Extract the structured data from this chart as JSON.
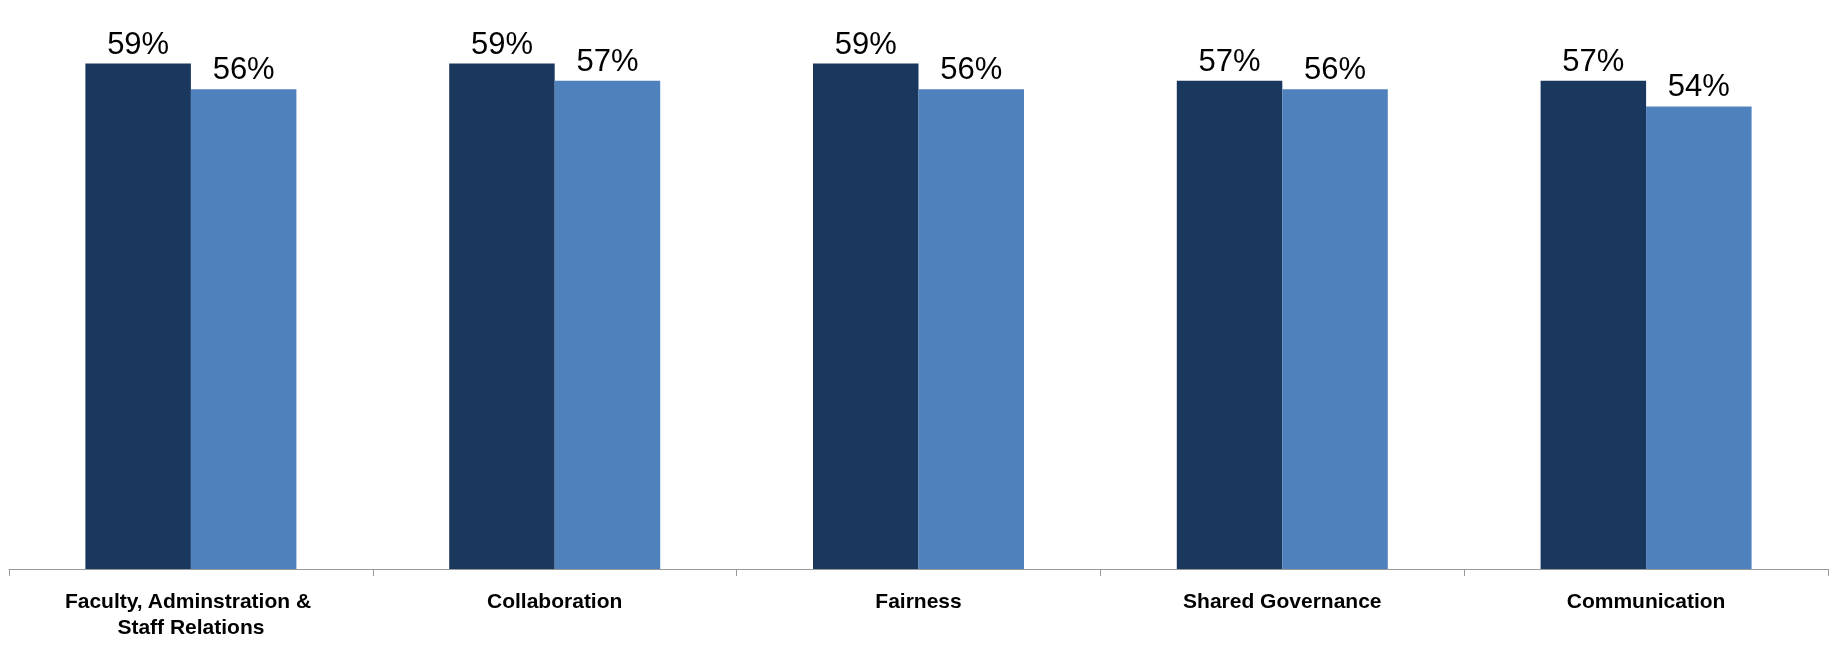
{
  "chart_data": {
    "type": "bar",
    "categories": [
      "Faculty, Adminstration & Staff Relations",
      "Collaboration",
      "Fairness",
      "Shared Governance",
      "Communication"
    ],
    "series": [
      {
        "color": "#1a375e",
        "values": [
          59,
          59,
          59,
          57,
          57
        ],
        "value_labels": [
          "59%",
          "59%",
          "59%",
          "57%",
          "57%"
        ]
      },
      {
        "color": "#4f81bd",
        "values": [
          56,
          57,
          56,
          56,
          54
        ],
        "value_labels": [
          "56%",
          "57%",
          "56%",
          "56%",
          "54%"
        ]
      }
    ],
    "tick_labels": "x"
  }
}
